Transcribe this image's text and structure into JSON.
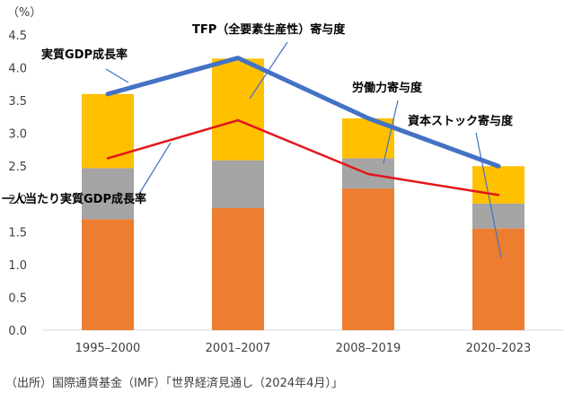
{
  "chart_data": {
    "type": "bar",
    "stacked": true,
    "categories": [
      "1995–2000",
      "2001–2007",
      "2008–2019",
      "2020–2023"
    ],
    "y_unit_label": "（%）",
    "ylim": [
      0,
      4.5
    ],
    "yticks": [
      "0.0",
      "0.5",
      "1.0",
      "1.5",
      "2.0",
      "2.5",
      "3.0",
      "3.5",
      "4.0",
      "4.5"
    ],
    "grid": false,
    "series": [
      {
        "name": "資本ストック寄与度",
        "kind": "bar",
        "color": "#ED7D31",
        "values": [
          1.69,
          1.86,
          2.16,
          1.55
        ]
      },
      {
        "name": "労働力寄与度",
        "kind": "bar",
        "color": "#A5A5A5",
        "values": [
          0.78,
          0.73,
          0.46,
          0.38
        ]
      },
      {
        "name": "TFP（全要素生産性）寄与度",
        "kind": "bar",
        "color": "#FFC000",
        "values": [
          1.13,
          1.55,
          0.61,
          0.57
        ]
      },
      {
        "name": "実質GDP成長率",
        "kind": "line",
        "color": "#4472C4",
        "values": [
          3.6,
          4.15,
          3.23,
          2.5
        ]
      },
      {
        "name": "一人当たり実質GDP成長率",
        "kind": "line",
        "color": "#E3171C",
        "values": [
          2.62,
          3.2,
          2.38,
          2.06
        ]
      }
    ],
    "source": "（出所）国際通貨基金（IMF）「世界経済見通し（2024年4月）」"
  }
}
